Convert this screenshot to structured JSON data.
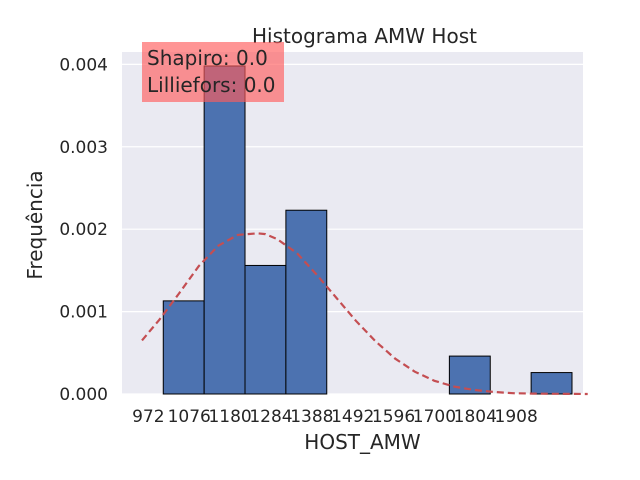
{
  "chart_data": {
    "type": "bar",
    "title": "Histograma AMW Host",
    "xlabel": "HOST_AMW",
    "ylabel": "Frequência",
    "xlim": [
      905,
      2078
    ],
    "ylim": [
      0,
      0.00415
    ],
    "xticks": [
      972,
      1076,
      1180,
      1284,
      1388,
      1492,
      1596,
      1700,
      1804,
      1908
    ],
    "yticks": [
      0,
      0.001,
      0.002,
      0.003,
      0.004
    ],
    "ytick_labels": [
      "0.000",
      "0.001",
      "0.002",
      "0.003",
      "0.004"
    ],
    "bin_edges": [
      1010,
      1114,
      1218,
      1322,
      1426,
      1530,
      1634,
      1738,
      1842,
      1946,
      2050
    ],
    "values": [
      0.00113,
      0.00398,
      0.00156,
      0.00223,
      0,
      0,
      0,
      0.00046,
      0,
      0.00026
    ],
    "bar_color": "#4c72b0",
    "grid": true,
    "background_color": "#eaeaf2",
    "fit_curve": {
      "style": "dashed",
      "color": "#c44e52",
      "x": [
        956,
        1000,
        1050,
        1100,
        1150,
        1200,
        1250,
        1270,
        1300,
        1350,
        1400,
        1450,
        1500,
        1550,
        1600,
        1650,
        1700,
        1750,
        1800,
        1850,
        1900,
        1950,
        2000,
        2050,
        2090
      ],
      "y": [
        0.00065,
        0.0009,
        0.00122,
        0.00155,
        0.0018,
        0.00193,
        0.00195,
        0.00194,
        0.00188,
        0.00171,
        0.00145,
        0.00117,
        0.00089,
        0.00064,
        0.00043,
        0.00027,
        0.00016,
        9e-05,
        5e-05,
        2.5e-05,
        1e-05,
        5e-06,
        2e-06,
        1e-06,
        0
      ]
    },
    "annotation": {
      "lines": [
        "Shapiro: 0.0",
        "Lilliefors: 0.0"
      ],
      "box_color": "#ff5c5c",
      "box_opacity": 0.65
    }
  }
}
